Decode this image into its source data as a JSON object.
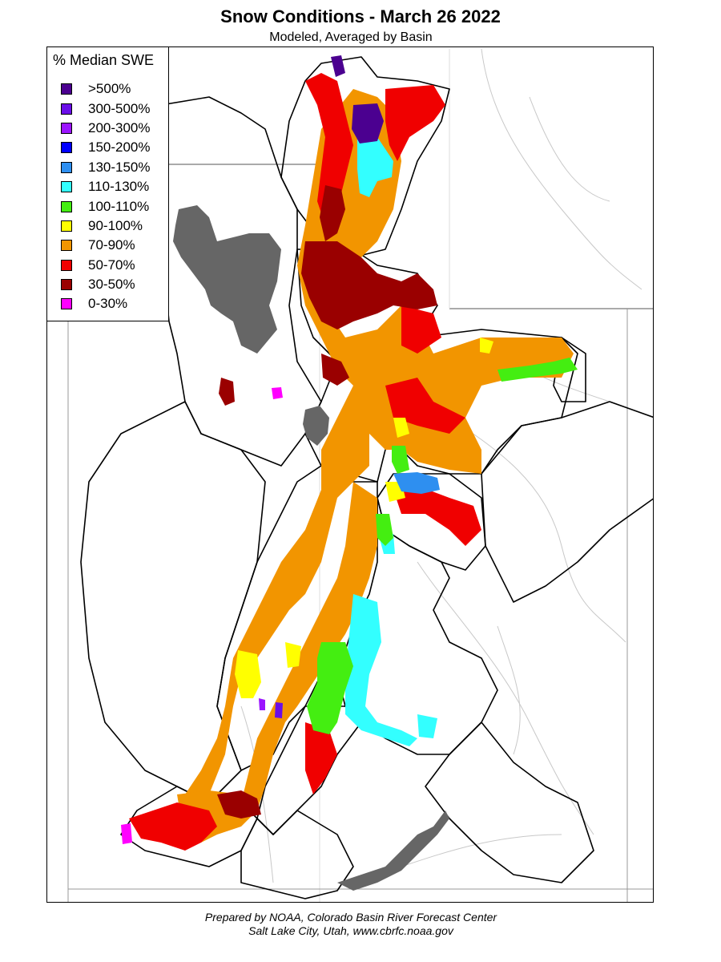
{
  "title": "Snow Conditions - March 26 2022",
  "subtitle": "Modeled, Averaged by Basin",
  "legend": {
    "title": "% Median SWE",
    "items": [
      {
        "label": ">500%",
        "color": "#4b0090"
      },
      {
        "label": "300-500%",
        "color": "#6a0ee8"
      },
      {
        "label": "200-300%",
        "color": "#9b15ff"
      },
      {
        "label": "150-200%",
        "color": "#0000ff"
      },
      {
        "label": "130-150%",
        "color": "#2e8ff0"
      },
      {
        "label": "110-130%",
        "color": "#33ffff"
      },
      {
        "label": "100-110%",
        "color": "#44ee11"
      },
      {
        "label": "90-100%",
        "color": "#ffff00"
      },
      {
        "label": "70-90%",
        "color": "#f29500"
      },
      {
        "label": "50-70%",
        "color": "#f00000"
      },
      {
        "label": "30-50%",
        "color": "#9a0000"
      },
      {
        "label": "0-30%",
        "color": "#ff00ff"
      }
    ]
  },
  "water_color": "#666666",
  "footer": {
    "line1": "Prepared by NOAA, Colorado Basin River Forecast Center",
    "line2": "Salt Lake City, Utah, www.cbrfc.noaa.gov"
  }
}
